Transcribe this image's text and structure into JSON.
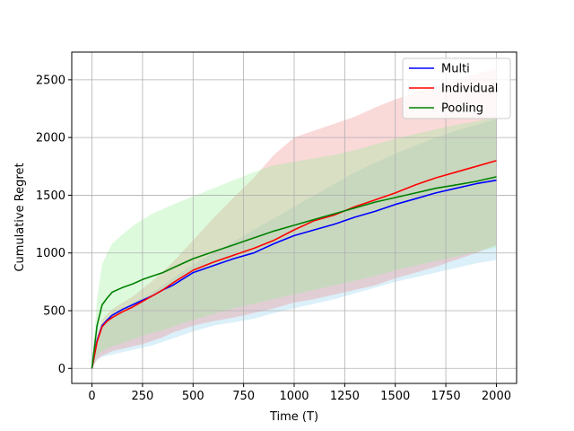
{
  "chart_data": {
    "type": "line",
    "title": "",
    "xlabel": "Time (T)",
    "ylabel": "Cumulative Regret",
    "xlim": [
      -100,
      2100
    ],
    "ylim": [
      -130,
      2740
    ],
    "xticks": [
      0,
      250,
      500,
      750,
      1000,
      1250,
      1500,
      1750,
      2000
    ],
    "yticks": [
      0,
      500,
      1000,
      1500,
      2000,
      2500
    ],
    "grid": true,
    "legend": "top-right",
    "series": [
      {
        "name": "Multi",
        "color": "#0000ff",
        "band_color": "#87ceeb",
        "x": [
          0,
          25,
          50,
          75,
          100,
          150,
          200,
          250,
          300,
          350,
          400,
          500,
          600,
          700,
          800,
          900,
          1000,
          1100,
          1200,
          1300,
          1400,
          1500,
          1600,
          1700,
          1800,
          1900,
          2000
        ],
        "y": [
          0,
          240,
          370,
          420,
          460,
          510,
          550,
          590,
          630,
          680,
          720,
          830,
          890,
          950,
          1000,
          1080,
          1150,
          1200,
          1250,
          1310,
          1360,
          1420,
          1470,
          1520,
          1560,
          1600,
          1630
        ],
        "lower": [
          0,
          70,
          100,
          110,
          120,
          140,
          160,
          180,
          200,
          230,
          260,
          320,
          370,
          400,
          430,
          480,
          520,
          560,
          600,
          650,
          700,
          750,
          790,
          830,
          870,
          910,
          940
        ],
        "upper": [
          0,
          260,
          380,
          420,
          460,
          520,
          570,
          610,
          660,
          720,
          780,
          900,
          1000,
          1100,
          1200,
          1300,
          1400,
          1500,
          1600,
          1700,
          1780,
          1860,
          1930,
          2000,
          2060,
          2110,
          2160
        ]
      },
      {
        "name": "Individual",
        "color": "#ff0000",
        "band_color": "#f08080",
        "x": [
          0,
          25,
          50,
          75,
          100,
          150,
          200,
          250,
          300,
          350,
          400,
          500,
          600,
          700,
          800,
          900,
          1000,
          1100,
          1200,
          1300,
          1400,
          1500,
          1600,
          1700,
          1800,
          1900,
          2000
        ],
        "y": [
          0,
          230,
          360,
          410,
          440,
          490,
          530,
          580,
          630,
          680,
          740,
          850,
          920,
          980,
          1040,
          1110,
          1200,
          1280,
          1330,
          1400,
          1460,
          1520,
          1590,
          1650,
          1700,
          1750,
          1800
        ],
        "lower": [
          0,
          80,
          110,
          130,
          150,
          170,
          190,
          210,
          240,
          270,
          310,
          370,
          410,
          440,
          480,
          520,
          570,
          600,
          640,
          680,
          720,
          780,
          830,
          880,
          940,
          1000,
          1070
        ],
        "upper": [
          0,
          280,
          420,
          470,
          510,
          570,
          620,
          690,
          760,
          840,
          920,
          1110,
          1300,
          1480,
          1650,
          1850,
          2000,
          2060,
          2120,
          2180,
          2260,
          2330,
          2390,
          2440,
          2500,
          2550,
          2600
        ]
      },
      {
        "name": "Pooling",
        "color": "#008000",
        "band_color": "#90ee90",
        "x": [
          0,
          25,
          50,
          75,
          100,
          150,
          200,
          250,
          300,
          350,
          400,
          500,
          600,
          700,
          800,
          900,
          1000,
          1100,
          1200,
          1300,
          1400,
          1500,
          1600,
          1700,
          1800,
          1900,
          2000
        ],
        "y": [
          0,
          370,
          550,
          610,
          660,
          700,
          730,
          770,
          800,
          830,
          870,
          950,
          1010,
          1070,
          1130,
          1190,
          1240,
          1290,
          1340,
          1390,
          1440,
          1480,
          1520,
          1560,
          1590,
          1620,
          1660
        ],
        "lower": [
          0,
          110,
          150,
          170,
          190,
          220,
          250,
          280,
          310,
          330,
          360,
          420,
          470,
          520,
          560,
          600,
          640,
          680,
          720,
          760,
          800,
          850,
          890,
          930,
          970,
          1010,
          1050
        ],
        "upper": [
          0,
          600,
          900,
          1000,
          1080,
          1160,
          1230,
          1290,
          1340,
          1380,
          1420,
          1490,
          1560,
          1630,
          1700,
          1760,
          1790,
          1820,
          1850,
          1890,
          1940,
          1990,
          2030,
          2070,
          2110,
          2140,
          2180
        ]
      }
    ]
  }
}
